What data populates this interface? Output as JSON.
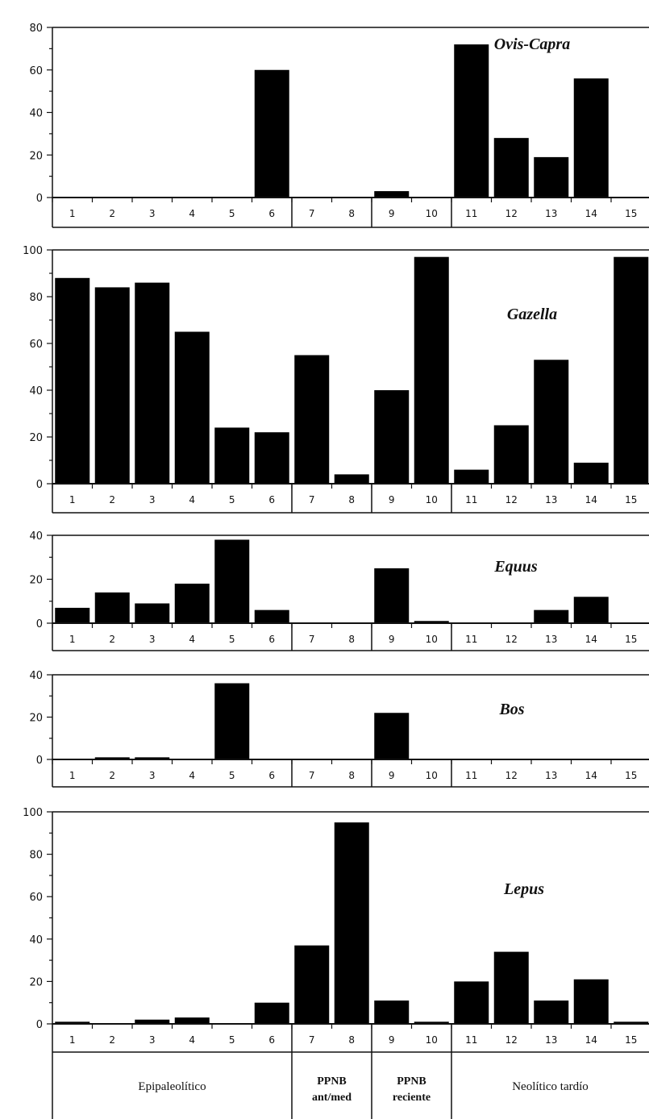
{
  "chart_data": [
    {
      "type": "bar",
      "title": "Ovis-Capra",
      "categories": [
        "1",
        "2",
        "3",
        "4",
        "5",
        "6",
        "7",
        "8",
        "9",
        "10",
        "11",
        "12",
        "13",
        "14",
        "15"
      ],
      "values": [
        0,
        0,
        0,
        0,
        0,
        60,
        0,
        0,
        3,
        0,
        72,
        28,
        19,
        56,
        0
      ],
      "ylim": [
        0,
        80
      ],
      "yticks": [
        "0",
        "20",
        "40",
        "60",
        "80"
      ]
    },
    {
      "type": "bar",
      "title": "Gazella",
      "categories": [
        "1",
        "2",
        "3",
        "4",
        "5",
        "6",
        "7",
        "8",
        "9",
        "10",
        "11",
        "12",
        "13",
        "14",
        "15"
      ],
      "values": [
        88,
        84,
        86,
        65,
        24,
        22,
        55,
        4,
        40,
        97,
        6,
        25,
        53,
        9,
        97
      ],
      "ylim": [
        0,
        100
      ],
      "yticks": [
        "0",
        "20",
        "40",
        "60",
        "80",
        "100"
      ]
    },
    {
      "type": "bar",
      "title": "Equus",
      "categories": [
        "1",
        "2",
        "3",
        "4",
        "5",
        "6",
        "7",
        "8",
        "9",
        "10",
        "11",
        "12",
        "13",
        "14",
        "15"
      ],
      "values": [
        7,
        14,
        9,
        18,
        38,
        6,
        0,
        0,
        25,
        1,
        0,
        0,
        6,
        12,
        0
      ],
      "ylim": [
        0,
        40
      ],
      "yticks": [
        "0",
        "20",
        "40"
      ]
    },
    {
      "type": "bar",
      "title": "Bos",
      "categories": [
        "1",
        "2",
        "3",
        "4",
        "5",
        "6",
        "7",
        "8",
        "9",
        "10",
        "11",
        "12",
        "13",
        "14",
        "15"
      ],
      "values": [
        0,
        1,
        1,
        0,
        36,
        0,
        0,
        0,
        22,
        0,
        0,
        0,
        0,
        0,
        0
      ],
      "ylim": [
        0,
        40
      ],
      "yticks": [
        "0",
        "20",
        "40"
      ]
    },
    {
      "type": "bar",
      "title": "Lepus",
      "categories": [
        "1",
        "2",
        "3",
        "4",
        "5",
        "6",
        "7",
        "8",
        "9",
        "10",
        "11",
        "12",
        "13",
        "14",
        "15"
      ],
      "values": [
        1,
        0,
        2,
        3,
        0,
        10,
        37,
        95,
        11,
        1,
        20,
        34,
        11,
        21,
        1
      ],
      "ylim": [
        0,
        100
      ],
      "yticks": [
        "0",
        "20",
        "40",
        "60",
        "80",
        "100"
      ]
    }
  ],
  "periods": [
    {
      "lines": [
        "Epipaleolítico"
      ],
      "bold": false
    },
    {
      "lines": [
        "PPNB",
        "ant/med"
      ],
      "bold": true
    },
    {
      "lines": [
        "PPNB",
        "reciente"
      ],
      "bold": true
    },
    {
      "lines": [
        "Neolítico tardío"
      ],
      "bold": false
    }
  ],
  "colors": {
    "bar": "#000000",
    "line": "#111111",
    "background": "#ffffff"
  }
}
